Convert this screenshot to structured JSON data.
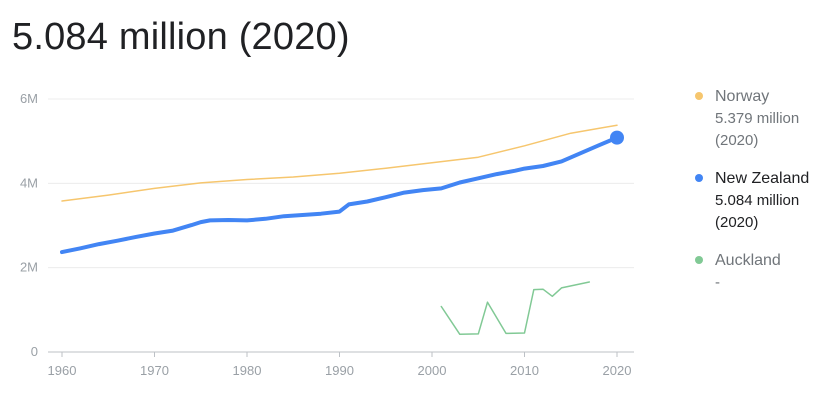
{
  "headline": "5.084 million (2020)",
  "chart_data": {
    "type": "line",
    "title": "",
    "xlabel": "",
    "ylabel": "",
    "xlim": [
      1960,
      2020
    ],
    "ylim": [
      0,
      6
    ],
    "y_unit": "million",
    "grid": true,
    "legend_position": "right",
    "x_ticks": [
      {
        "value": 1960,
        "label": "1960"
      },
      {
        "value": 1970,
        "label": "1970"
      },
      {
        "value": 1980,
        "label": "1980"
      },
      {
        "value": 1990,
        "label": "1990"
      },
      {
        "value": 2000,
        "label": "2000"
      },
      {
        "value": 2010,
        "label": "2010"
      },
      {
        "value": 2020,
        "label": "2020"
      }
    ],
    "y_ticks": [
      {
        "value": 0,
        "label": "0"
      },
      {
        "value": 2,
        "label": "2M"
      },
      {
        "value": 4,
        "label": "4M"
      },
      {
        "value": 6,
        "label": "6M"
      }
    ],
    "series": [
      {
        "name": "Norway",
        "color": "#f6c66e",
        "line_weight": "thin",
        "highlighted": false,
        "legend_value": "5.379 million\n(2020)",
        "points": [
          [
            1960,
            3.58
          ],
          [
            1965,
            3.72
          ],
          [
            1970,
            3.88
          ],
          [
            1975,
            4.01
          ],
          [
            1980,
            4.09
          ],
          [
            1985,
            4.15
          ],
          [
            1990,
            4.24
          ],
          [
            1995,
            4.36
          ],
          [
            2000,
            4.49
          ],
          [
            2005,
            4.62
          ],
          [
            2010,
            4.89
          ],
          [
            2015,
            5.19
          ],
          [
            2020,
            5.379
          ]
        ]
      },
      {
        "name": "New Zealand",
        "color": "#4285f4",
        "line_weight": "thick",
        "highlighted": true,
        "legend_value": "5.084 million\n(2020)",
        "points": [
          [
            1960,
            2.37
          ],
          [
            1962,
            2.46
          ],
          [
            1964,
            2.56
          ],
          [
            1966,
            2.64
          ],
          [
            1968,
            2.73
          ],
          [
            1970,
            2.81
          ],
          [
            1972,
            2.88
          ],
          [
            1974,
            3.01
          ],
          [
            1975,
            3.08
          ],
          [
            1976,
            3.12
          ],
          [
            1978,
            3.13
          ],
          [
            1980,
            3.12
          ],
          [
            1982,
            3.16
          ],
          [
            1984,
            3.22
          ],
          [
            1986,
            3.25
          ],
          [
            1988,
            3.28
          ],
          [
            1990,
            3.33
          ],
          [
            1991,
            3.5
          ],
          [
            1993,
            3.57
          ],
          [
            1995,
            3.67
          ],
          [
            1997,
            3.78
          ],
          [
            1999,
            3.84
          ],
          [
            2001,
            3.88
          ],
          [
            2003,
            4.02
          ],
          [
            2005,
            4.12
          ],
          [
            2007,
            4.22
          ],
          [
            2009,
            4.3
          ],
          [
            2010,
            4.35
          ],
          [
            2012,
            4.41
          ],
          [
            2014,
            4.52
          ],
          [
            2016,
            4.71
          ],
          [
            2018,
            4.9
          ],
          [
            2020,
            5.084
          ]
        ]
      },
      {
        "name": "Auckland",
        "color": "#81c995",
        "line_weight": "thin",
        "highlighted": false,
        "legend_value": "-",
        "points": [
          [
            2001,
            1.08
          ],
          [
            2003,
            0.42
          ],
          [
            2005,
            0.43
          ],
          [
            2006,
            1.18
          ],
          [
            2008,
            0.44
          ],
          [
            2010,
            0.45
          ],
          [
            2011,
            1.48
          ],
          [
            2012,
            1.49
          ],
          [
            2013,
            1.32
          ],
          [
            2014,
            1.52
          ],
          [
            2017,
            1.66
          ]
        ]
      }
    ]
  }
}
